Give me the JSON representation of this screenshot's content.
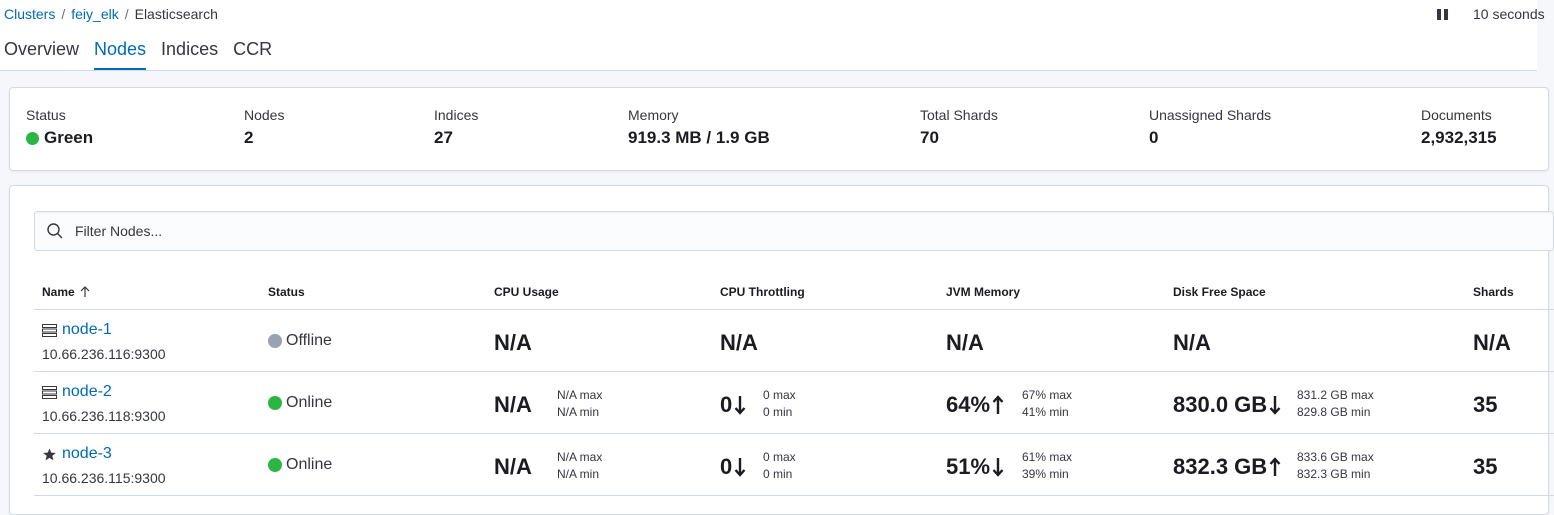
{
  "breadcrumb": {
    "clusters": "Clusters",
    "cluster": "feiy_elk",
    "current": "Elasticsearch",
    "separator": "/"
  },
  "refresh": {
    "interval": "10 seconds",
    "pause_icon": "pause-icon"
  },
  "tabs": [
    {
      "label": "Overview",
      "active": false
    },
    {
      "label": "Nodes",
      "active": true
    },
    {
      "label": "Indices",
      "active": false
    },
    {
      "label": "CCR",
      "active": false
    }
  ],
  "summary": {
    "status_label": "Status",
    "status_value": "Green",
    "status_color": "#2bb643",
    "nodes_label": "Nodes",
    "nodes_value": "2",
    "indices_label": "Indices",
    "indices_value": "27",
    "memory_label": "Memory",
    "memory_value": "919.3 MB / 1.9 GB",
    "shards_label": "Total Shards",
    "shards_value": "70",
    "unassigned_label": "Unassigned Shards",
    "unassigned_value": "0",
    "documents_label": "Documents",
    "documents_value": "2,932,315"
  },
  "filter": {
    "placeholder": "Filter Nodes..."
  },
  "table": {
    "columns": [
      "Name",
      "Status",
      "CPU Usage",
      "CPU Throttling",
      "JVM Memory",
      "Disk Free Space",
      "Shards"
    ],
    "sort_icon": "arrow-up-icon",
    "rows": [
      {
        "icon": "server-icon",
        "name": "node-1",
        "address": "10.66.236.116:9300",
        "status": "Offline",
        "status_color": "#98a2b3",
        "cpu": "N/A",
        "cpu_throttling": "N/A",
        "jvm": "N/A",
        "disk": "N/A",
        "shards": "N/A"
      },
      {
        "icon": "server-icon",
        "name": "node-2",
        "address": "10.66.236.118:9300",
        "status": "Online",
        "status_color": "#2bb643",
        "cpu": "N/A",
        "cpu_max": "N/A max",
        "cpu_min": "N/A min",
        "throttling": "0",
        "throttling_trend": "down",
        "throttling_max": "0 max",
        "throttling_min": "0 min",
        "jvm": "64%",
        "jvm_trend": "up",
        "jvm_max": "67% max",
        "jvm_min": "41% min",
        "disk": "830.0 GB",
        "disk_trend": "down",
        "disk_max": "831.2 GB max",
        "disk_min": "829.8 GB min",
        "shards": "35"
      },
      {
        "icon": "star-icon",
        "name": "node-3",
        "address": "10.66.236.115:9300",
        "status": "Online",
        "status_color": "#2bb643",
        "cpu": "N/A",
        "cpu_max": "N/A max",
        "cpu_min": "N/A min",
        "throttling": "0",
        "throttling_trend": "down",
        "throttling_max": "0 max",
        "throttling_min": "0 min",
        "jvm": "51%",
        "jvm_trend": "down",
        "jvm_max": "61% max",
        "jvm_min": "39% min",
        "disk": "832.3 GB",
        "disk_trend": "up",
        "disk_max": "833.6 GB max",
        "disk_min": "832.3 GB min",
        "shards": "35"
      }
    ]
  }
}
